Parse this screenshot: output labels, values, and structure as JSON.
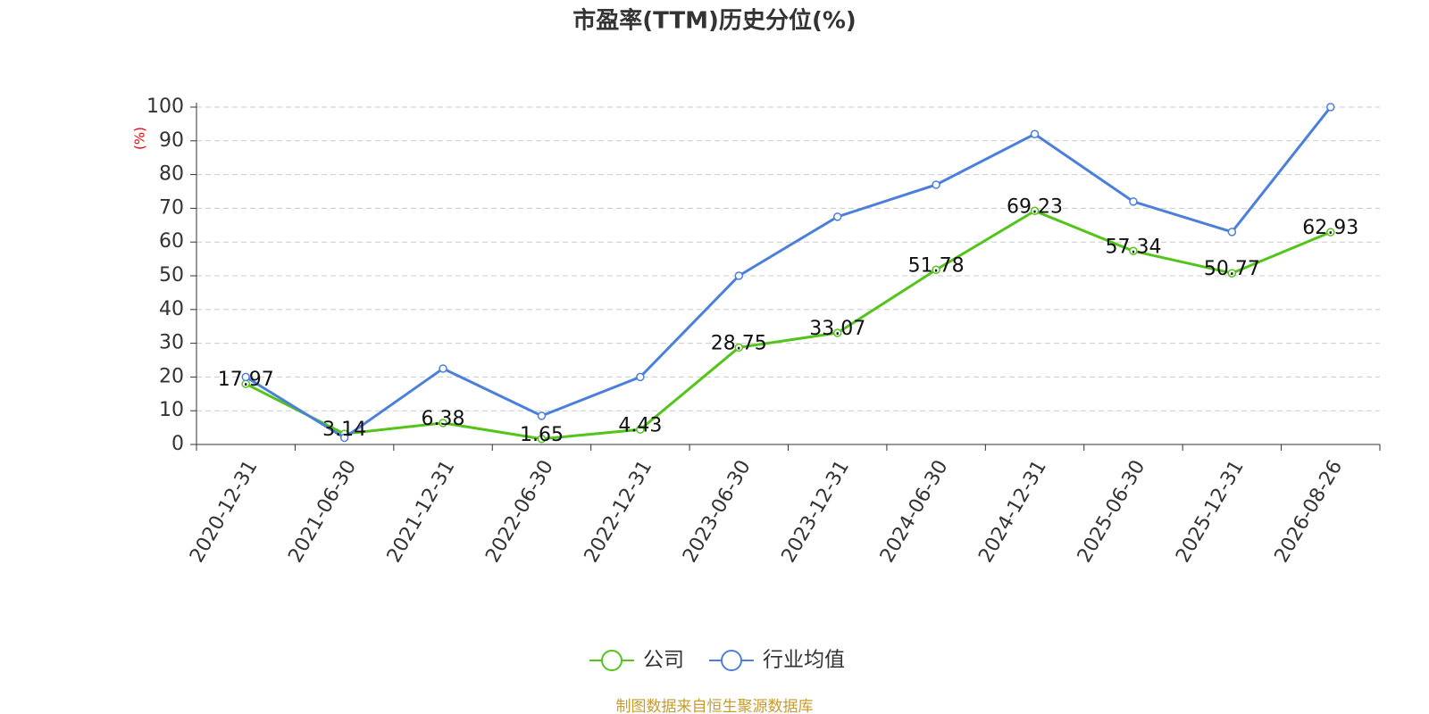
{
  "chart_data": {
    "type": "line",
    "title": "市盈率(TTM)历史分位(%)",
    "y_label": "(%)",
    "categories": [
      "2020-12-31",
      "2021-06-30",
      "2021-12-31",
      "2022-06-30",
      "2022-12-31",
      "2023-06-30",
      "2023-12-31",
      "2024-06-30",
      "2024-12-31",
      "2025-06-30",
      "2025-12-31",
      "2026-08-26"
    ],
    "series": [
      {
        "name": "公司",
        "color": "#52c41a",
        "data_labels": true,
        "values": [
          17.97,
          3.14,
          6.38,
          1.65,
          4.43,
          28.75,
          33.07,
          51.78,
          69.23,
          57.34,
          50.77,
          62.93
        ]
      },
      {
        "name": "行业均值",
        "color": "#4a7fdc",
        "data_labels": false,
        "values": [
          20,
          2,
          22.5,
          8.5,
          20,
          50,
          67.5,
          77,
          92,
          72,
          63,
          100
        ]
      }
    ],
    "ylim": [
      0,
      100
    ],
    "yticks": [
      0,
      10,
      20,
      30,
      40,
      50,
      60,
      70,
      80,
      90,
      100
    ],
    "grid": true,
    "legend": "bottom",
    "source": "制图数据来自恒生聚源数据库"
  }
}
